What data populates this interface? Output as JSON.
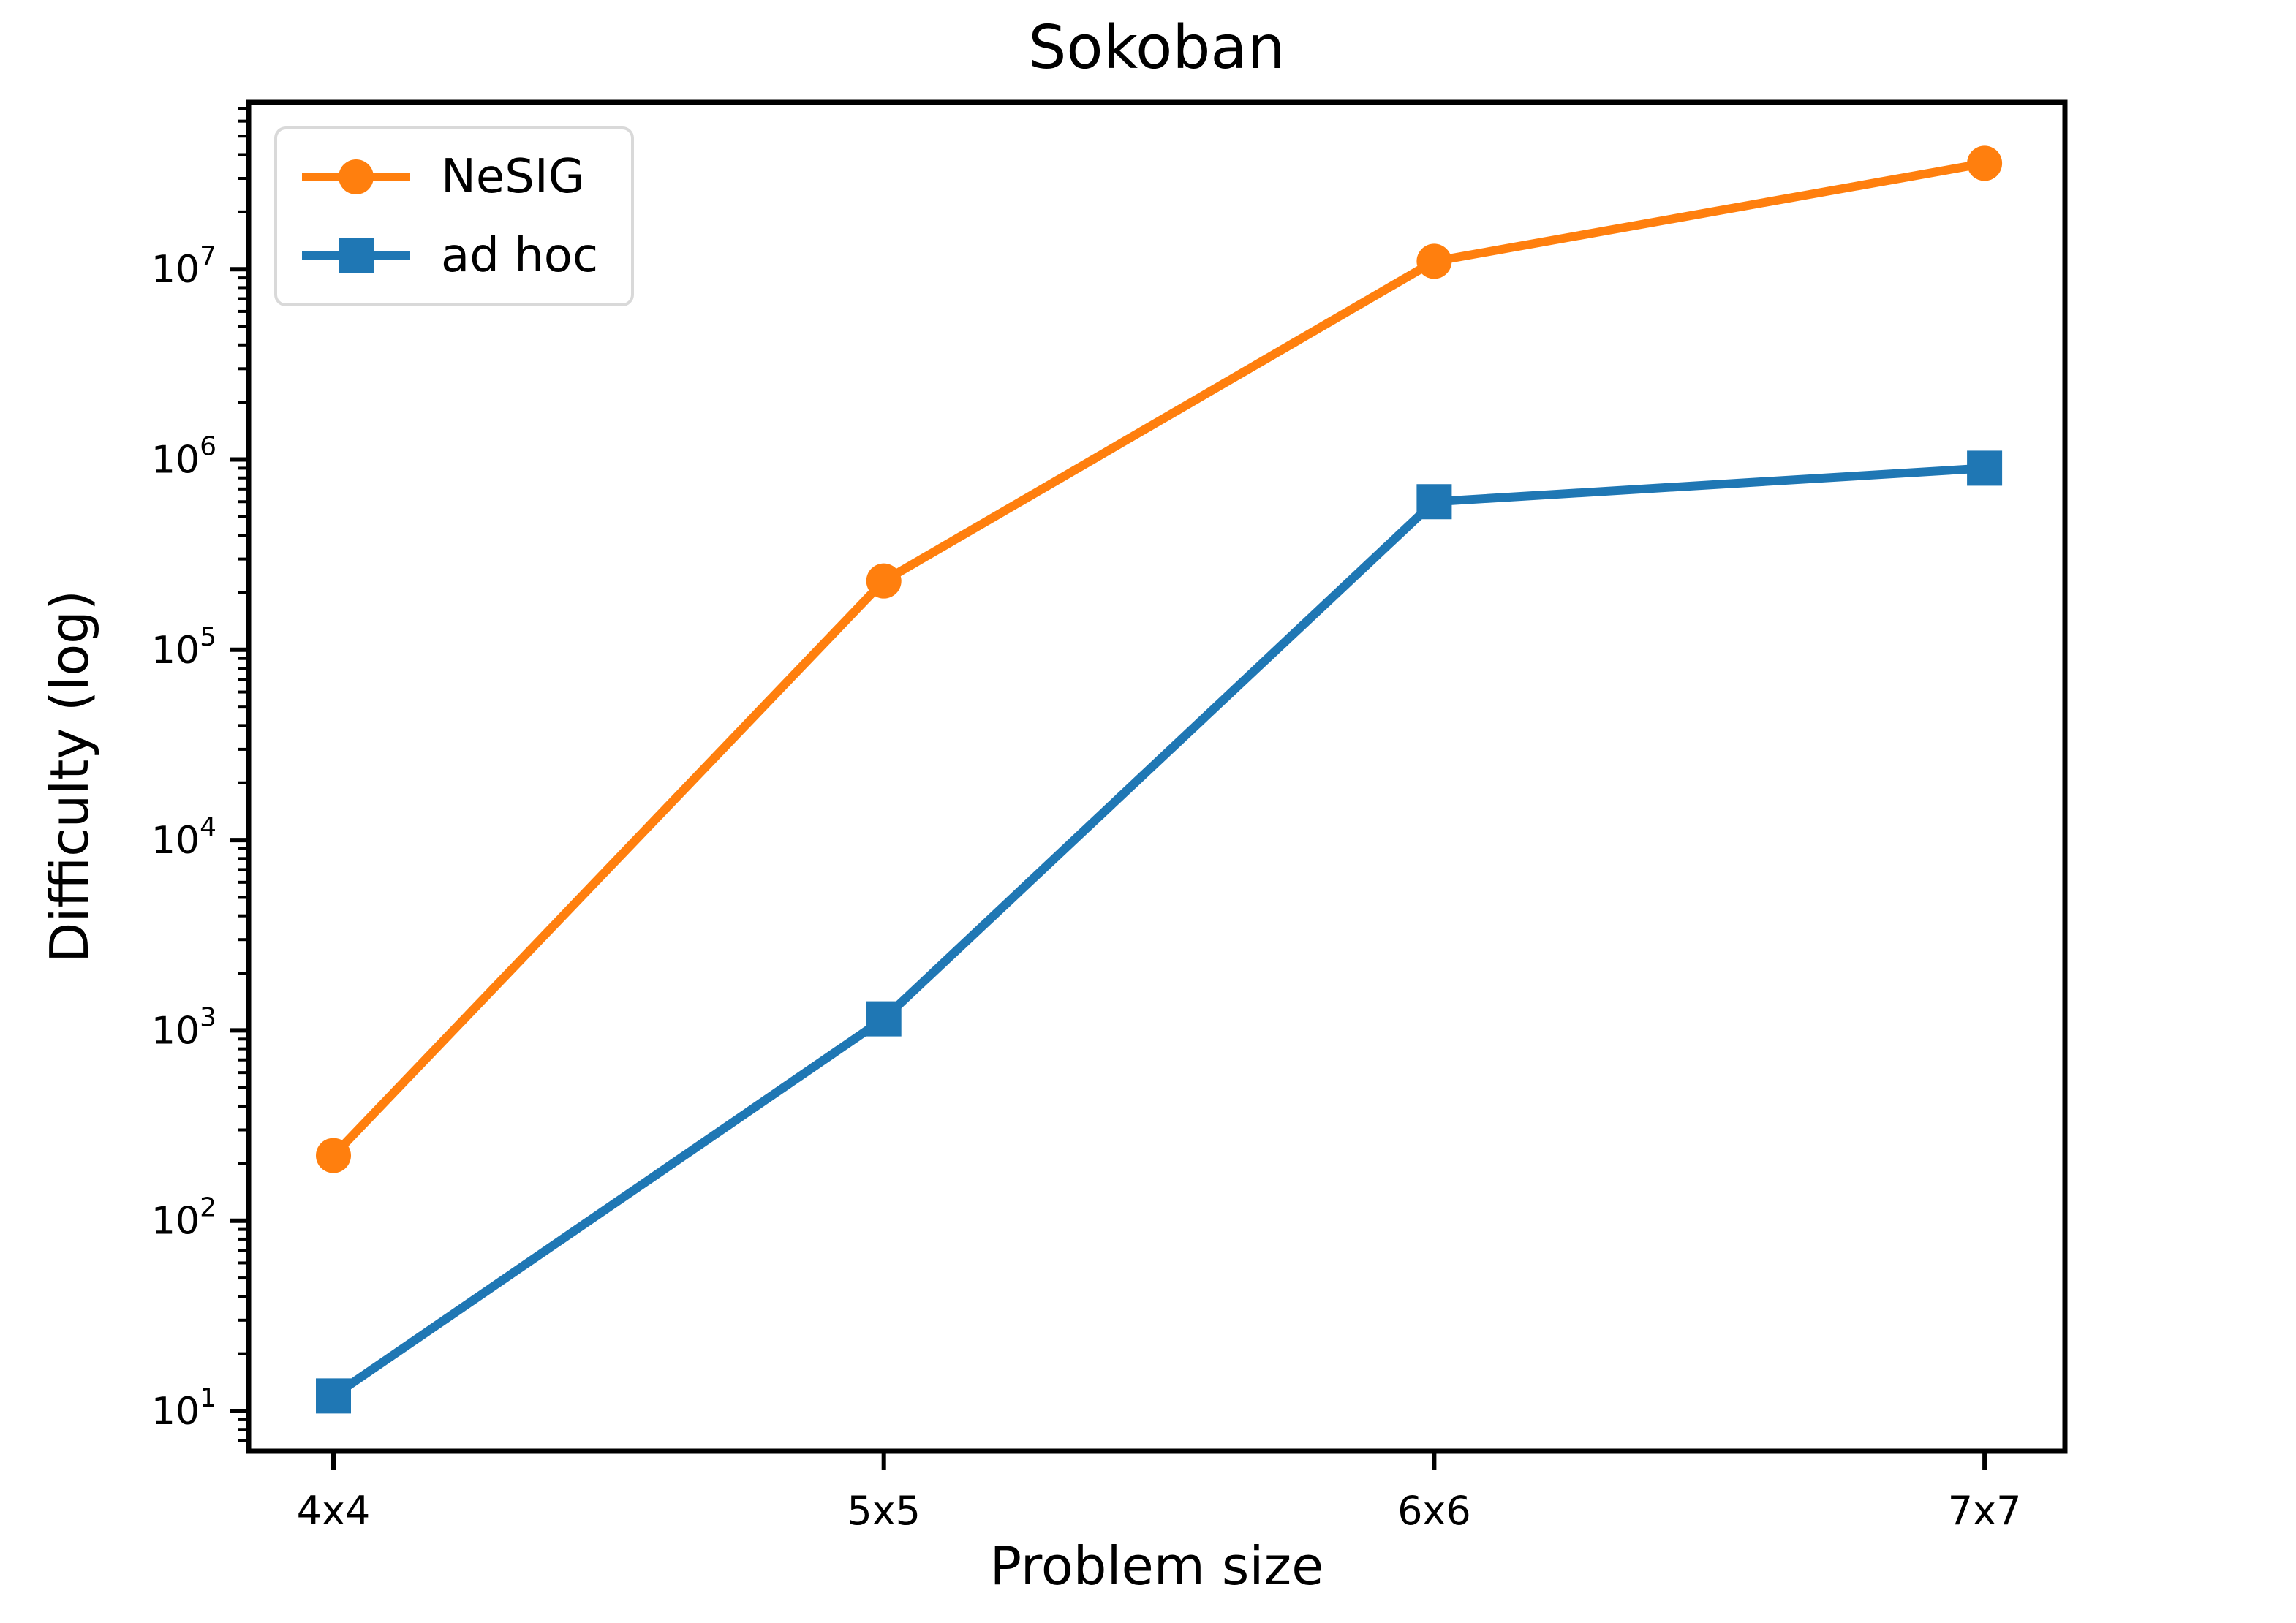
{
  "chart_data": {
    "type": "line",
    "title": "Sokoban",
    "xlabel": "Problem size",
    "ylabel": "Difficulty (log)",
    "categories": [
      "4x4",
      "5x5",
      "6x6",
      "7x7"
    ],
    "series": [
      {
        "name": "NeSIG",
        "color": "#ff7f0e",
        "marker": "circle",
        "values": [
          220,
          230000,
          11000000,
          36000000
        ]
      },
      {
        "name": "ad hoc",
        "color": "#1f77b4",
        "marker": "square",
        "values": [
          12,
          1150,
          600000,
          900000
        ]
      }
    ],
    "y_scale": "log",
    "y_tick_exponents": [
      1,
      2,
      3,
      4,
      5,
      6,
      7
    ],
    "ylim": [
      6,
      75000000
    ],
    "grid": false,
    "legend_position": "upper left",
    "axis_color": "#000000",
    "background_color": "#ffffff"
  }
}
